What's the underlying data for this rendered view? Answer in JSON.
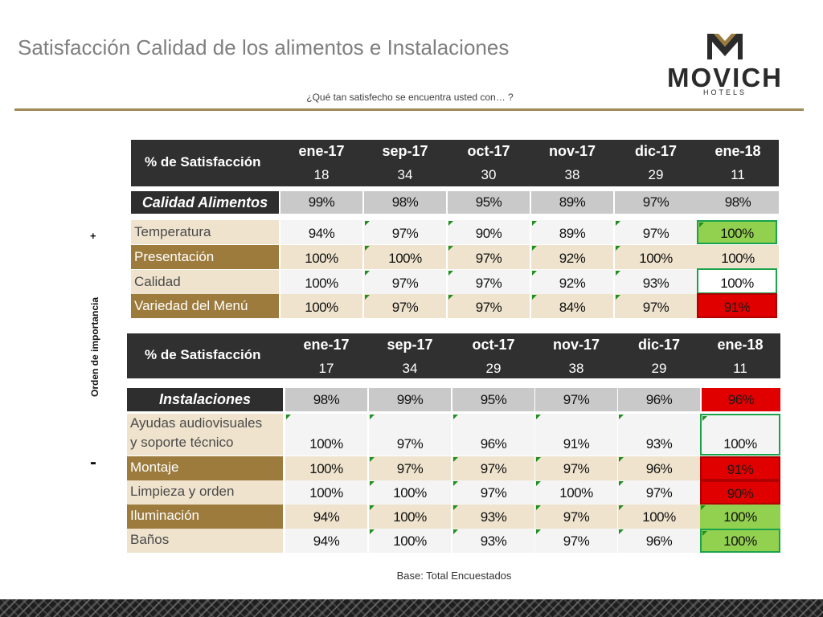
{
  "title": "Satisfacción Calidad de los alimentos e Instalaciones",
  "subtitle": "¿Qué tan satisfecho se encuentra usted con… ?",
  "logo": {
    "name": "MOVICH",
    "tagline": "HOTELS"
  },
  "side": {
    "plus": "+",
    "minus": "-",
    "axis_label": "Orden de importancia"
  },
  "footnote": "Base: Total Encuestados",
  "colors": {
    "gold": "#9c7b3d",
    "header_dark": "#303030",
    "green": "#92d050",
    "red": "#e00000"
  },
  "table1": {
    "header_label": "% de Satisfacción",
    "months": [
      "ene-17",
      "sep-17",
      "oct-17",
      "nov-17",
      "dic-17",
      "ene-18"
    ],
    "bases": [
      "18",
      "34",
      "30",
      "38",
      "29",
      "11"
    ],
    "section": {
      "label": "Calidad Alimentos",
      "values": [
        "99%",
        "98%",
        "95%",
        "89%",
        "97%",
        "98%"
      ]
    },
    "rows": [
      {
        "label": "Temperatura",
        "values": [
          "94%",
          "97%",
          "90%",
          "89%",
          "97%",
          "100%"
        ]
      },
      {
        "label": "Presentación",
        "values": [
          "100%",
          "100%",
          "97%",
          "92%",
          "100%",
          "100%"
        ]
      },
      {
        "label": "Calidad",
        "values": [
          "100%",
          "97%",
          "97%",
          "92%",
          "93%",
          "100%"
        ]
      },
      {
        "label": "Variedad del Menú",
        "values": [
          "100%",
          "97%",
          "97%",
          "84%",
          "97%",
          "91%"
        ]
      }
    ]
  },
  "table2": {
    "header_label": "% de Satisfacción",
    "months": [
      "ene-17",
      "sep-17",
      "oct-17",
      "nov-17",
      "dic-17",
      "ene-18"
    ],
    "bases": [
      "17",
      "34",
      "29",
      "38",
      "29",
      "11"
    ],
    "section": {
      "label": "Instalaciones",
      "values": [
        "98%",
        "99%",
        "95%",
        "97%",
        "96%",
        "96%"
      ]
    },
    "rows": [
      {
        "label1": "Ayudas audiovisuales",
        "label2": "y soporte técnico",
        "values": [
          "100%",
          "97%",
          "96%",
          "91%",
          "93%",
          "100%"
        ]
      },
      {
        "label": "Montaje",
        "values": [
          "100%",
          "97%",
          "97%",
          "97%",
          "96%",
          "91%"
        ]
      },
      {
        "label": "Limpieza y orden",
        "values": [
          "100%",
          "100%",
          "97%",
          "100%",
          "97%",
          "90%"
        ]
      },
      {
        "label": "Iluminación",
        "values": [
          "94%",
          "100%",
          "93%",
          "97%",
          "100%",
          "100%"
        ]
      },
      {
        "label": "Baños",
        "values": [
          "94%",
          "100%",
          "93%",
          "97%",
          "96%",
          "100%"
        ]
      }
    ]
  }
}
